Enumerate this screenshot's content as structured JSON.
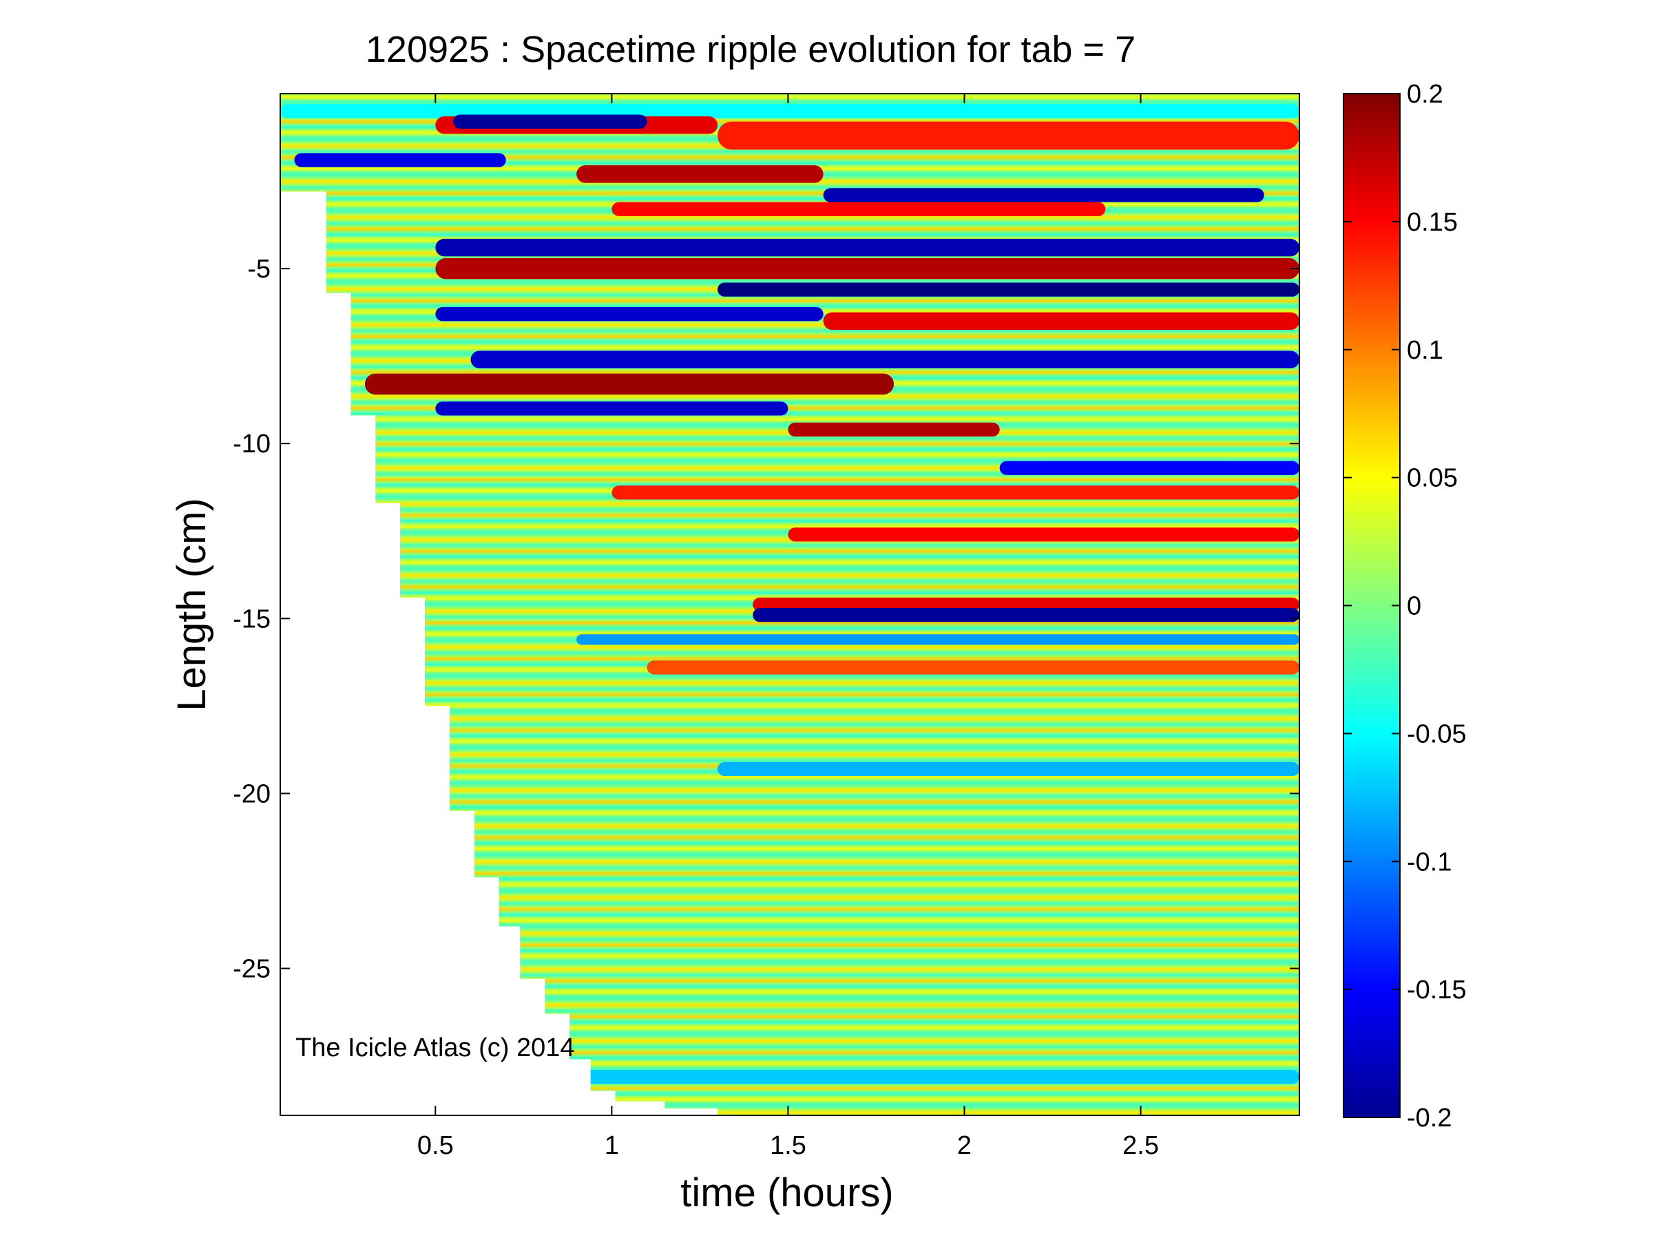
{
  "figure": {
    "title": "120925 : Spacetime ripple evolution for tab = 7",
    "watermark": "The Icicle Atlas (c) 2014"
  },
  "chart_data": {
    "type": "heatmap",
    "title": "120925 : Spacetime ripple evolution for tab = 7",
    "xlabel": "time (hours)",
    "ylabel": "Length (cm)",
    "xlim": [
      0.06,
      2.95
    ],
    "ylim": [
      -29.2,
      0
    ],
    "x_ticks": [
      0.5,
      1,
      1.5,
      2,
      2.5
    ],
    "x_tick_labels": [
      "0.5",
      "1",
      "1.5",
      "2",
      "2.5"
    ],
    "y_ticks": [
      -5,
      -10,
      -15,
      -20,
      -25
    ],
    "y_tick_labels": [
      "-5",
      "-10",
      "-15",
      "-20",
      "-25"
    ],
    "colormap": "jet",
    "colorbar": {
      "clim": [
        -0.2,
        0.2
      ],
      "ticks": [
        0.2,
        0.15,
        0.1,
        0.05,
        0,
        -0.05,
        -0.1,
        -0.15,
        -0.2
      ],
      "tick_labels": [
        "0.2",
        "0.15",
        "0.1",
        "0.05",
        "0",
        "-0.05",
        "-0.1",
        "-0.15",
        "-0.2"
      ]
    },
    "grid": false,
    "data_boundary": [
      [
        0.12,
        -2.8
      ],
      [
        0.19,
        -5.7
      ],
      [
        0.26,
        -9.2
      ],
      [
        0.33,
        -11.7
      ],
      [
        0.4,
        -14.4
      ],
      [
        0.47,
        -17.5
      ],
      [
        0.54,
        -20.5
      ],
      [
        0.61,
        -22.4
      ],
      [
        0.68,
        -23.8
      ],
      [
        0.74,
        -25.3
      ],
      [
        0.81,
        -26.3
      ],
      [
        0.88,
        -27.6
      ],
      [
        0.94,
        -28.5
      ],
      [
        1.01,
        -28.8
      ],
      [
        1.15,
        -29.0
      ],
      [
        1.3,
        -29.2
      ]
    ],
    "bands": [
      {
        "y": -0.5,
        "x_start": 0.06,
        "x_end": 2.95,
        "value": -0.05,
        "thickness": 0.4
      },
      {
        "y": -0.9,
        "x_start": 0.5,
        "x_end": 1.3,
        "value": 0.16,
        "thickness": 0.5
      },
      {
        "y": -1.2,
        "x_start": 1.3,
        "x_end": 2.95,
        "value": 0.14,
        "thickness": 0.8
      },
      {
        "y": -0.8,
        "x_start": 0.55,
        "x_end": 1.1,
        "value": -0.19,
        "thickness": 0.4
      },
      {
        "y": -1.9,
        "x_start": 0.1,
        "x_end": 0.7,
        "value": -0.16,
        "thickness": 0.4
      },
      {
        "y": -2.3,
        "x_start": 0.9,
        "x_end": 1.6,
        "value": 0.18,
        "thickness": 0.5
      },
      {
        "y": -2.9,
        "x_start": 1.6,
        "x_end": 2.85,
        "value": -0.18,
        "thickness": 0.4
      },
      {
        "y": -3.3,
        "x_start": 1.0,
        "x_end": 2.4,
        "value": 0.15,
        "thickness": 0.4
      },
      {
        "y": -4.4,
        "x_start": 0.5,
        "x_end": 2.95,
        "value": -0.18,
        "thickness": 0.5
      },
      {
        "y": -5.0,
        "x_start": 0.5,
        "x_end": 2.95,
        "value": 0.18,
        "thickness": 0.6
      },
      {
        "y": -5.6,
        "x_start": 1.3,
        "x_end": 2.95,
        "value": -0.2,
        "thickness": 0.4
      },
      {
        "y": -6.3,
        "x_start": 0.5,
        "x_end": 1.6,
        "value": -0.17,
        "thickness": 0.4
      },
      {
        "y": -6.5,
        "x_start": 1.6,
        "x_end": 2.95,
        "value": 0.16,
        "thickness": 0.5
      },
      {
        "y": -7.6,
        "x_start": 0.6,
        "x_end": 2.95,
        "value": -0.17,
        "thickness": 0.5
      },
      {
        "y": -8.3,
        "x_start": 0.3,
        "x_end": 1.8,
        "value": 0.19,
        "thickness": 0.6
      },
      {
        "y": -9.0,
        "x_start": 0.5,
        "x_end": 1.5,
        "value": -0.17,
        "thickness": 0.4
      },
      {
        "y": -9.6,
        "x_start": 1.5,
        "x_end": 2.1,
        "value": 0.18,
        "thickness": 0.4
      },
      {
        "y": -10.7,
        "x_start": 2.1,
        "x_end": 2.95,
        "value": -0.15,
        "thickness": 0.4
      },
      {
        "y": -11.4,
        "x_start": 1.0,
        "x_end": 2.95,
        "value": 0.14,
        "thickness": 0.4
      },
      {
        "y": -12.6,
        "x_start": 1.5,
        "x_end": 2.95,
        "value": 0.15,
        "thickness": 0.4
      },
      {
        "y": -14.6,
        "x_start": 1.4,
        "x_end": 2.95,
        "value": 0.16,
        "thickness": 0.4
      },
      {
        "y": -14.9,
        "x_start": 1.4,
        "x_end": 2.95,
        "value": -0.19,
        "thickness": 0.4
      },
      {
        "y": -15.6,
        "x_start": 0.9,
        "x_end": 2.95,
        "value": -0.09,
        "thickness": 0.3
      },
      {
        "y": -16.4,
        "x_start": 1.1,
        "x_end": 2.95,
        "value": 0.12,
        "thickness": 0.4
      },
      {
        "y": -19.3,
        "x_start": 1.3,
        "x_end": 2.95,
        "value": -0.08,
        "thickness": 0.4
      },
      {
        "y": -28.1,
        "x_start": 0.9,
        "x_end": 2.95,
        "value": -0.07,
        "thickness": 0.4
      }
    ]
  }
}
